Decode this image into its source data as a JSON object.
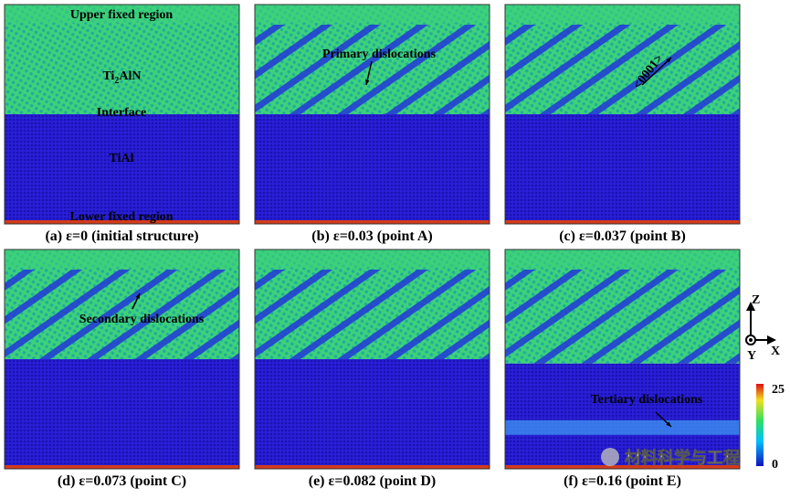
{
  "panels": [
    {
      "caption": "(a) ε=0 (initial structure)",
      "annotations": [
        "Upper fixed region",
        "Interface",
        "TiAl",
        "Lower fixed region"
      ],
      "material": [
        "Ti",
        "2",
        "AlN"
      ]
    },
    {
      "caption": "(b) ε=0.03 (point A)",
      "annotations": [
        "Primary dislocations"
      ]
    },
    {
      "caption": "(c) ε=0.037 (point B)",
      "annotations": [
        "<0001>"
      ]
    },
    {
      "caption": "(d) ε=0.073 (point C)",
      "annotations": [
        "Secondary dislocations"
      ]
    },
    {
      "caption": "(e) ε=0.082 (point D)",
      "annotations": []
    },
    {
      "caption": "(f) ε=0.16 (point E)",
      "annotations": [
        "Tertiary dislocations"
      ]
    }
  ],
  "axes": {
    "z": "Z",
    "x": "X",
    "y": "Y"
  },
  "colorbar": {
    "max": 25,
    "min": 0
  },
  "watermark": "材料科学与工程"
}
